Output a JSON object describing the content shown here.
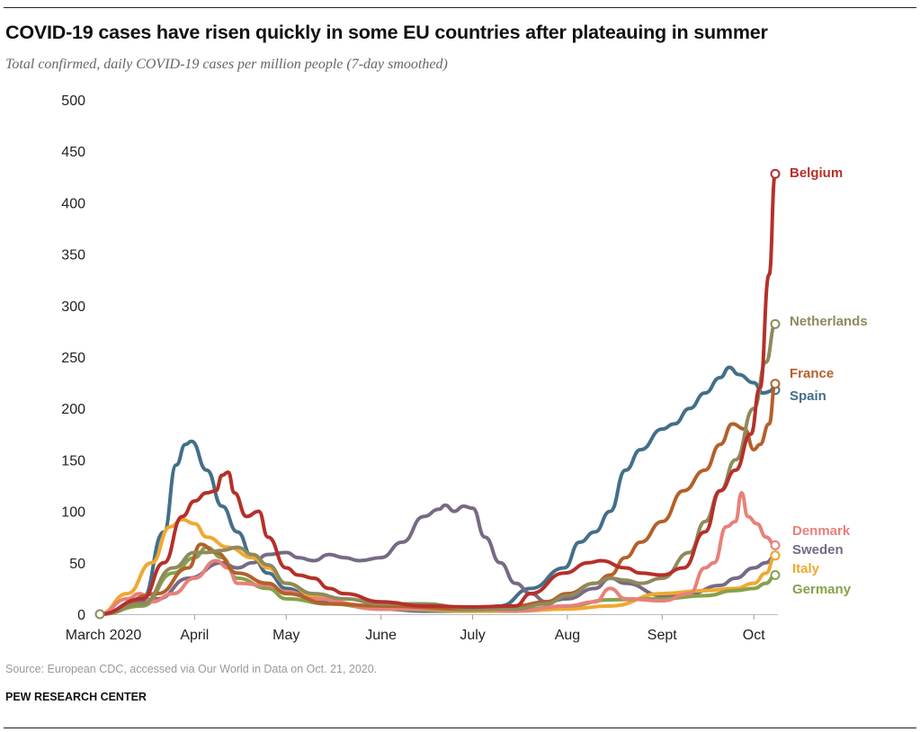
{
  "title": "COVID-19 cases have risen quickly in some EU countries after plateauing in summer",
  "subtitle": "Total confirmed, daily COVID-19 cases per million people (7-day smoothed)",
  "source": "Source: European CDC, accessed via Our World in Data on Oct. 21, 2020.",
  "organization": "PEW RESEARCH CENTER",
  "chart_data": {
    "type": "line",
    "title": "COVID-19 cases have risen quickly in some EU countries after plateauing in summer",
    "xlabel": "",
    "ylabel": "",
    "ylim": [
      0,
      500
    ],
    "xlim": [
      "2020-03-01",
      "2020-10-08"
    ],
    "yticks": [
      0,
      50,
      100,
      150,
      200,
      250,
      300,
      350,
      400,
      450,
      500
    ],
    "xticks": [
      {
        "date": "2020-03-01",
        "label": "March 2020"
      },
      {
        "date": "2020-04-01",
        "label": "April"
      },
      {
        "date": "2020-05-01",
        "label": "May"
      },
      {
        "date": "2020-06-01",
        "label": "June"
      },
      {
        "date": "2020-07-01",
        "label": "July"
      },
      {
        "date": "2020-08-01",
        "label": "Aug"
      },
      {
        "date": "2020-09-01",
        "label": "Sept"
      },
      {
        "date": "2020-10-01",
        "label": "Oct"
      }
    ],
    "grid": false,
    "legend": "direct labels at line ends (right)",
    "series": [
      {
        "name": "Spain",
        "color": "#436f8a",
        "points": [
          [
            "2020-03-01",
            0
          ],
          [
            "2020-03-15",
            15
          ],
          [
            "2020-03-22",
            80
          ],
          [
            "2020-03-26",
            145
          ],
          [
            "2020-03-29",
            165
          ],
          [
            "2020-03-31",
            168
          ],
          [
            "2020-04-05",
            140
          ],
          [
            "2020-04-10",
            105
          ],
          [
            "2020-04-15",
            80
          ],
          [
            "2020-04-20",
            55
          ],
          [
            "2020-04-25",
            40
          ],
          [
            "2020-05-01",
            25
          ],
          [
            "2020-05-10",
            15
          ],
          [
            "2020-05-15",
            12
          ],
          [
            "2020-06-01",
            5
          ],
          [
            "2020-06-15",
            3
          ],
          [
            "2020-07-01",
            3
          ],
          [
            "2020-07-10",
            8
          ],
          [
            "2020-07-20",
            25
          ],
          [
            "2020-07-31",
            45
          ],
          [
            "2020-08-05",
            70
          ],
          [
            "2020-08-10",
            80
          ],
          [
            "2020-08-15",
            100
          ],
          [
            "2020-08-20",
            140
          ],
          [
            "2020-08-25",
            160
          ],
          [
            "2020-09-01",
            180
          ],
          [
            "2020-09-05",
            185
          ],
          [
            "2020-09-10",
            200
          ],
          [
            "2020-09-15",
            215
          ],
          [
            "2020-09-20",
            230
          ],
          [
            "2020-09-23",
            240
          ],
          [
            "2020-09-26",
            233
          ],
          [
            "2020-10-01",
            225
          ],
          [
            "2020-10-04",
            215
          ],
          [
            "2020-10-08",
            218
          ]
        ]
      },
      {
        "name": "Sweden",
        "color": "#776a85",
        "points": [
          [
            "2020-03-01",
            0
          ],
          [
            "2020-03-20",
            15
          ],
          [
            "2020-03-30",
            35
          ],
          [
            "2020-04-10",
            50
          ],
          [
            "2020-04-15",
            45
          ],
          [
            "2020-04-20",
            50
          ],
          [
            "2020-04-25",
            58
          ],
          [
            "2020-05-01",
            60
          ],
          [
            "2020-05-05",
            55
          ],
          [
            "2020-05-10",
            52
          ],
          [
            "2020-05-15",
            58
          ],
          [
            "2020-05-20",
            55
          ],
          [
            "2020-05-25",
            52
          ],
          [
            "2020-06-01",
            55
          ],
          [
            "2020-06-08",
            70
          ],
          [
            "2020-06-15",
            95
          ],
          [
            "2020-06-20",
            102
          ],
          [
            "2020-06-22",
            106
          ],
          [
            "2020-06-25",
            100
          ],
          [
            "2020-06-28",
            105
          ],
          [
            "2020-07-01",
            103
          ],
          [
            "2020-07-05",
            75
          ],
          [
            "2020-07-10",
            50
          ],
          [
            "2020-07-15",
            30
          ],
          [
            "2020-07-20",
            20
          ],
          [
            "2020-07-25",
            12
          ],
          [
            "2020-08-01",
            15
          ],
          [
            "2020-08-10",
            25
          ],
          [
            "2020-08-15",
            35
          ],
          [
            "2020-08-20",
            30
          ],
          [
            "2020-09-01",
            18
          ],
          [
            "2020-09-10",
            20
          ],
          [
            "2020-09-20",
            28
          ],
          [
            "2020-09-25",
            35
          ],
          [
            "2020-10-01",
            45
          ],
          [
            "2020-10-05",
            50
          ],
          [
            "2020-10-08",
            57
          ]
        ]
      },
      {
        "name": "Italy",
        "color": "#f0a830",
        "points": [
          [
            "2020-03-01",
            0
          ],
          [
            "2020-03-10",
            20
          ],
          [
            "2020-03-18",
            50
          ],
          [
            "2020-03-24",
            85
          ],
          [
            "2020-03-28",
            92
          ],
          [
            "2020-04-01",
            88
          ],
          [
            "2020-04-05",
            75
          ],
          [
            "2020-04-12",
            65
          ],
          [
            "2020-04-20",
            55
          ],
          [
            "2020-04-25",
            45
          ],
          [
            "2020-05-01",
            30
          ],
          [
            "2020-05-10",
            18
          ],
          [
            "2020-05-20",
            10
          ],
          [
            "2020-06-01",
            5
          ],
          [
            "2020-07-01",
            3
          ],
          [
            "2020-07-15",
            3
          ],
          [
            "2020-08-01",
            5
          ],
          [
            "2020-08-15",
            8
          ],
          [
            "2020-09-01",
            20
          ],
          [
            "2020-09-15",
            23
          ],
          [
            "2020-09-25",
            25
          ],
          [
            "2020-10-01",
            30
          ],
          [
            "2020-10-05",
            40
          ],
          [
            "2020-10-08",
            57
          ]
        ]
      },
      {
        "name": "Germany",
        "color": "#85a24a",
        "points": [
          [
            "2020-03-01",
            0
          ],
          [
            "2020-03-15",
            8
          ],
          [
            "2020-03-25",
            40
          ],
          [
            "2020-04-01",
            55
          ],
          [
            "2020-04-05",
            65
          ],
          [
            "2020-04-10",
            55
          ],
          [
            "2020-04-15",
            35
          ],
          [
            "2020-04-25",
            25
          ],
          [
            "2020-05-01",
            15
          ],
          [
            "2020-05-15",
            10
          ],
          [
            "2020-06-01",
            5
          ],
          [
            "2020-07-01",
            4
          ],
          [
            "2020-07-15",
            4
          ],
          [
            "2020-08-01",
            8
          ],
          [
            "2020-08-15",
            14
          ],
          [
            "2020-09-01",
            15
          ],
          [
            "2020-09-15",
            18
          ],
          [
            "2020-09-25",
            23
          ],
          [
            "2020-10-01",
            25
          ],
          [
            "2020-10-05",
            30
          ],
          [
            "2020-10-08",
            38
          ]
        ]
      },
      {
        "name": "Denmark",
        "color": "#e8807a",
        "points": [
          [
            "2020-03-01",
            0
          ],
          [
            "2020-03-10",
            15
          ],
          [
            "2020-03-14",
            20
          ],
          [
            "2020-03-18",
            12
          ],
          [
            "2020-03-25",
            20
          ],
          [
            "2020-04-01",
            35
          ],
          [
            "2020-04-08",
            52
          ],
          [
            "2020-04-12",
            45
          ],
          [
            "2020-04-15",
            30
          ],
          [
            "2020-04-25",
            28
          ],
          [
            "2020-05-01",
            22
          ],
          [
            "2020-05-10",
            15
          ],
          [
            "2020-06-01",
            5
          ],
          [
            "2020-07-01",
            5
          ],
          [
            "2020-07-15",
            3
          ],
          [
            "2020-08-01",
            8
          ],
          [
            "2020-08-10",
            12
          ],
          [
            "2020-08-15",
            25
          ],
          [
            "2020-08-20",
            15
          ],
          [
            "2020-09-01",
            13
          ],
          [
            "2020-09-10",
            20
          ],
          [
            "2020-09-15",
            45
          ],
          [
            "2020-09-18",
            50
          ],
          [
            "2020-09-22",
            85
          ],
          [
            "2020-09-25",
            90
          ],
          [
            "2020-09-27",
            118
          ],
          [
            "2020-09-29",
            95
          ],
          [
            "2020-10-02",
            88
          ],
          [
            "2020-10-05",
            75
          ],
          [
            "2020-10-08",
            67
          ]
        ]
      },
      {
        "name": "France",
        "color": "#b4602a",
        "points": [
          [
            "2020-03-01",
            0
          ],
          [
            "2020-03-20",
            20
          ],
          [
            "2020-03-30",
            45
          ],
          [
            "2020-04-03",
            68
          ],
          [
            "2020-04-08",
            60
          ],
          [
            "2020-04-15",
            40
          ],
          [
            "2020-04-25",
            30
          ],
          [
            "2020-05-01",
            20
          ],
          [
            "2020-05-15",
            10
          ],
          [
            "2020-06-01",
            8
          ],
          [
            "2020-07-01",
            5
          ],
          [
            "2020-07-15",
            8
          ],
          [
            "2020-07-25",
            12
          ],
          [
            "2020-08-01",
            20
          ],
          [
            "2020-08-10",
            30
          ],
          [
            "2020-08-15",
            38
          ],
          [
            "2020-08-20",
            55
          ],
          [
            "2020-08-25",
            70
          ],
          [
            "2020-09-01",
            90
          ],
          [
            "2020-09-08",
            120
          ],
          [
            "2020-09-15",
            140
          ],
          [
            "2020-09-20",
            165
          ],
          [
            "2020-09-24",
            185
          ],
          [
            "2020-09-28",
            180
          ],
          [
            "2020-10-01",
            160
          ],
          [
            "2020-10-03",
            165
          ],
          [
            "2020-10-06",
            185
          ],
          [
            "2020-10-08",
            224
          ]
        ]
      },
      {
        "name": "Netherlands",
        "color": "#8f8a5c",
        "points": [
          [
            "2020-03-01",
            0
          ],
          [
            "2020-03-15",
            10
          ],
          [
            "2020-03-25",
            45
          ],
          [
            "2020-04-01",
            60
          ],
          [
            "2020-04-05",
            60
          ],
          [
            "2020-04-10",
            62
          ],
          [
            "2020-04-15",
            65
          ],
          [
            "2020-04-20",
            58
          ],
          [
            "2020-04-25",
            48
          ],
          [
            "2020-05-01",
            30
          ],
          [
            "2020-05-10",
            20
          ],
          [
            "2020-05-20",
            15
          ],
          [
            "2020-06-01",
            10
          ],
          [
            "2020-06-15",
            10
          ],
          [
            "2020-07-01",
            5
          ],
          [
            "2020-07-15",
            5
          ],
          [
            "2020-07-25",
            10
          ],
          [
            "2020-08-01",
            18
          ],
          [
            "2020-08-10",
            30
          ],
          [
            "2020-08-15",
            35
          ],
          [
            "2020-08-20",
            33
          ],
          [
            "2020-08-25",
            30
          ],
          [
            "2020-09-01",
            35
          ],
          [
            "2020-09-10",
            60
          ],
          [
            "2020-09-15",
            90
          ],
          [
            "2020-09-20",
            120
          ],
          [
            "2020-09-25",
            150
          ],
          [
            "2020-10-01",
            200
          ],
          [
            "2020-10-05",
            245
          ],
          [
            "2020-10-08",
            282
          ]
        ]
      },
      {
        "name": "Belgium",
        "color": "#b5302a",
        "points": [
          [
            "2020-03-01",
            0
          ],
          [
            "2020-03-15",
            15
          ],
          [
            "2020-03-22",
            50
          ],
          [
            "2020-03-28",
            95
          ],
          [
            "2020-04-01",
            110
          ],
          [
            "2020-04-05",
            118
          ],
          [
            "2020-04-08",
            120
          ],
          [
            "2020-04-10",
            135
          ],
          [
            "2020-04-12",
            138
          ],
          [
            "2020-04-14",
            118
          ],
          [
            "2020-04-18",
            95
          ],
          [
            "2020-04-22",
            100
          ],
          [
            "2020-04-25",
            75
          ],
          [
            "2020-05-01",
            45
          ],
          [
            "2020-05-05",
            38
          ],
          [
            "2020-05-10",
            35
          ],
          [
            "2020-05-15",
            25
          ],
          [
            "2020-05-20",
            20
          ],
          [
            "2020-06-01",
            12
          ],
          [
            "2020-06-15",
            8
          ],
          [
            "2020-07-01",
            7
          ],
          [
            "2020-07-15",
            8
          ],
          [
            "2020-07-20",
            20
          ],
          [
            "2020-07-31",
            40
          ],
          [
            "2020-08-08",
            50
          ],
          [
            "2020-08-12",
            52
          ],
          [
            "2020-08-20",
            45
          ],
          [
            "2020-08-25",
            40
          ],
          [
            "2020-09-01",
            38
          ],
          [
            "2020-09-08",
            45
          ],
          [
            "2020-09-15",
            80
          ],
          [
            "2020-09-20",
            120
          ],
          [
            "2020-09-25",
            140
          ],
          [
            "2020-09-30",
            175
          ],
          [
            "2020-10-03",
            220
          ],
          [
            "2020-10-06",
            330
          ],
          [
            "2020-10-08",
            428
          ]
        ]
      }
    ]
  }
}
